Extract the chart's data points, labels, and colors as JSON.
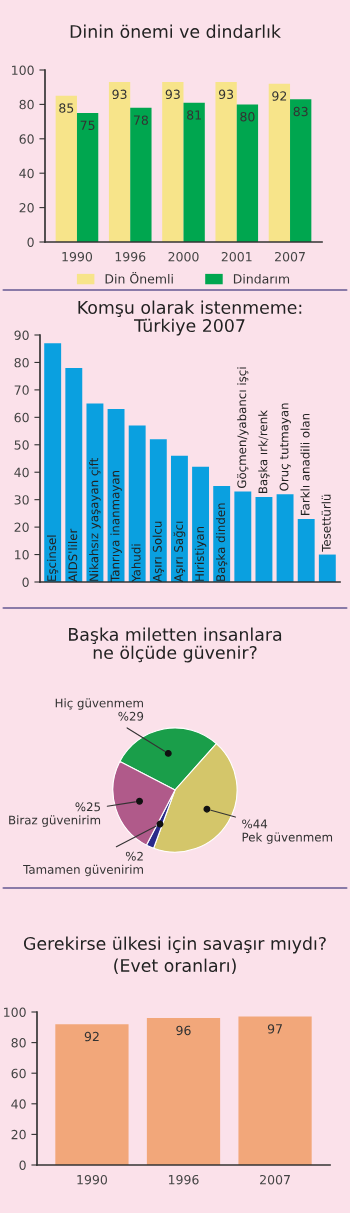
{
  "chart_data": [
    {
      "type": "bar",
      "title": "Dinin önemi ve dindarlık",
      "categories": [
        "1990",
        "1996",
        "2000",
        "2001",
        "2007"
      ],
      "series": [
        {
          "name": "Din Önemli",
          "color": "#f7e48a",
          "values": [
            85,
            93,
            93,
            93,
            92
          ]
        },
        {
          "name": "Dindarım",
          "color": "#00a64f",
          "values": [
            75,
            78,
            81,
            80,
            83
          ]
        }
      ],
      "ylim": [
        0,
        100
      ],
      "yticks": [
        0,
        20,
        40,
        60,
        80,
        100
      ],
      "data_labels": true,
      "legend": "bottom"
    },
    {
      "type": "bar",
      "title": "Komşu olarak istenmeme:\nTürkiye 2007",
      "categories": [
        "Eşcinsel",
        "AIDS'liler",
        "Nikahsız yaşayan çift",
        "Tanrıya inanmayan",
        "Yahudi",
        "Aşırı Solcu",
        "Aşırı Sağcı",
        "Hıristiyan",
        "Başka dinden",
        "Göçmen/yabancı işçi",
        "Başka ırk/renk",
        "Oruç tutmayan",
        "Farklı anadili olan",
        "Tesettürlü"
      ],
      "values": [
        87,
        78,
        65,
        63,
        57,
        52,
        46,
        42,
        35,
        33,
        31,
        32,
        23,
        10
      ],
      "color": "#0aa0e0",
      "ylim": [
        0,
        90
      ],
      "yticks": [
        0,
        10,
        20,
        30,
        40,
        50,
        60,
        70,
        80,
        90
      ]
    },
    {
      "type": "pie",
      "title": "Başka miletten insanlara\nne ölçüde güvenir?",
      "categories": [
        "Hiç güvenmem",
        "Pek güvenmem",
        "Tamamen güvenirim",
        "Biraz güvenirim"
      ],
      "values": [
        29,
        44,
        2,
        25
      ],
      "colors": [
        "#1a9e4a",
        "#d4c66a",
        "#2a2a8a",
        "#b05a8a"
      ],
      "value_labels": [
        "%29",
        "%44",
        "%2",
        "%25"
      ]
    },
    {
      "type": "bar",
      "title": "Gerekirse ülkesi için savaşır mıydı?",
      "subtitle": "(Evet oranları)",
      "categories": [
        "1990",
        "1996",
        "2007"
      ],
      "values": [
        92,
        96,
        97
      ],
      "color": "#f2a77a",
      "ylim": [
        0,
        100
      ],
      "yticks": [
        0,
        20,
        40,
        60,
        80,
        100
      ],
      "data_labels": true
    }
  ]
}
